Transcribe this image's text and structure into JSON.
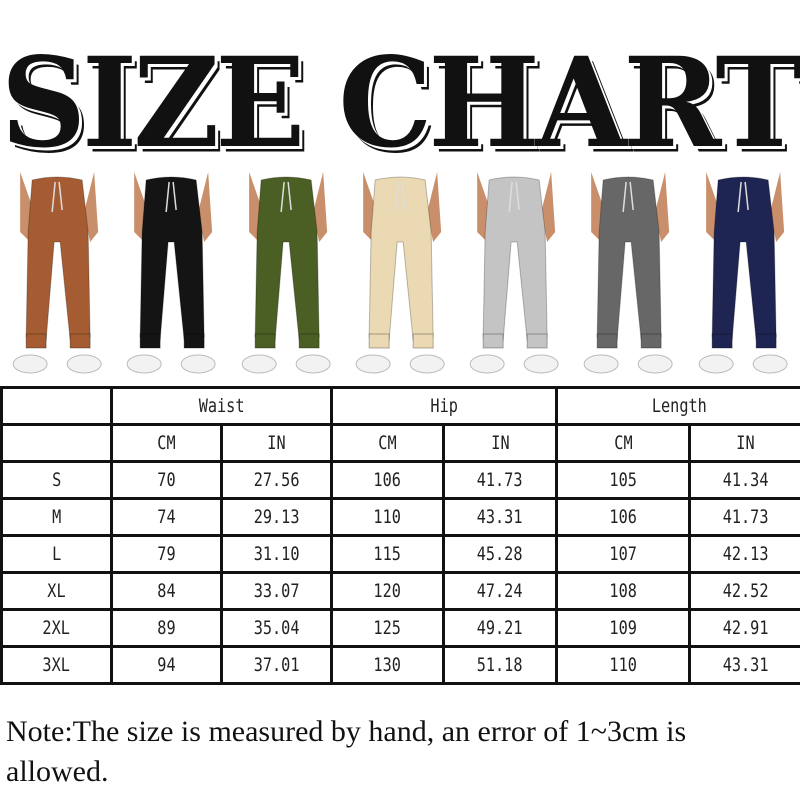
{
  "title": "SIZE CHART",
  "models": [
    {
      "color_name": "brown",
      "color": "#a65c32"
    },
    {
      "color_name": "black",
      "color": "#141414"
    },
    {
      "color_name": "olive",
      "color": "#4b5e24"
    },
    {
      "color_name": "cream",
      "color": "#ead9b2"
    },
    {
      "color_name": "light-gray",
      "color": "#c4c4c4"
    },
    {
      "color_name": "dark-gray",
      "color": "#676767"
    },
    {
      "color_name": "navy",
      "color": "#1f2552"
    }
  ],
  "table": {
    "groups": [
      "Waist",
      "Hip",
      "Length"
    ],
    "units": [
      "CM",
      "IN",
      "CM",
      "IN",
      "CM",
      "IN"
    ],
    "rows": [
      {
        "size": "S",
        "values": [
          "70",
          "27.56",
          "106",
          "41.73",
          "105",
          "41.34"
        ]
      },
      {
        "size": "M",
        "values": [
          "74",
          "29.13",
          "110",
          "43.31",
          "106",
          "41.73"
        ]
      },
      {
        "size": "L",
        "values": [
          "79",
          "31.10",
          "115",
          "45.28",
          "107",
          "42.13"
        ]
      },
      {
        "size": "XL",
        "values": [
          "84",
          "33.07",
          "120",
          "47.24",
          "108",
          "42.52"
        ]
      },
      {
        "size": "2XL",
        "values": [
          "89",
          "35.04",
          "125",
          "49.21",
          "109",
          "42.91"
        ]
      },
      {
        "size": "3XL",
        "values": [
          "94",
          "37.01",
          "130",
          "51.18",
          "110",
          "43.31"
        ]
      }
    ]
  },
  "note": "Note:The size is measured by hand, an error of 1~3cm is allowed."
}
